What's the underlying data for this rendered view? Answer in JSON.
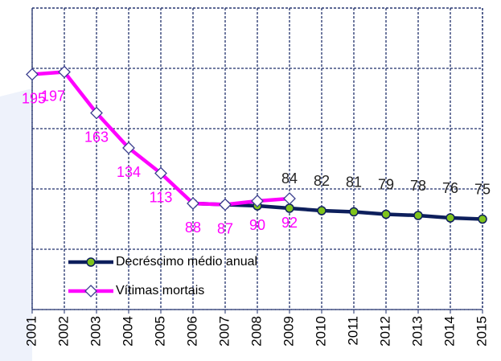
{
  "chart_data": {
    "type": "line",
    "categories": [
      "2001",
      "2002",
      "2003",
      "2004",
      "2005",
      "2006",
      "2007",
      "2008",
      "2009",
      "2010",
      "2011",
      "2012",
      "2013",
      "2014",
      "2015"
    ],
    "ylim": [
      0,
      250
    ],
    "yticks": [
      0,
      50,
      100,
      150,
      200,
      250
    ],
    "grid": true,
    "legend": "lower left",
    "series": [
      {
        "name": "Decréscimo médio anual",
        "color": "#0d1f5c",
        "marker_color": "#7fc31c",
        "values": [
          null,
          null,
          null,
          null,
          null,
          88,
          87,
          86,
          84,
          82,
          81,
          79,
          78,
          76,
          75
        ],
        "value_labels": [
          null,
          null,
          null,
          null,
          null,
          null,
          null,
          null,
          "84",
          "82",
          "81",
          "79",
          "78",
          "76",
          "75"
        ],
        "label_color": "#222222"
      },
      {
        "name": "Vítimas mortais",
        "color": "#ff00ff",
        "marker_color": "#ffffff",
        "values": [
          195,
          197,
          163,
          134,
          113,
          88,
          87,
          90,
          92,
          null,
          null,
          null,
          null,
          null,
          null
        ],
        "value_labels": [
          "195",
          "197",
          "163",
          "134",
          "113",
          "88",
          "87",
          "90",
          "92",
          null,
          null,
          null,
          null,
          null,
          null
        ],
        "label_color": "#ff00ff"
      }
    ]
  }
}
